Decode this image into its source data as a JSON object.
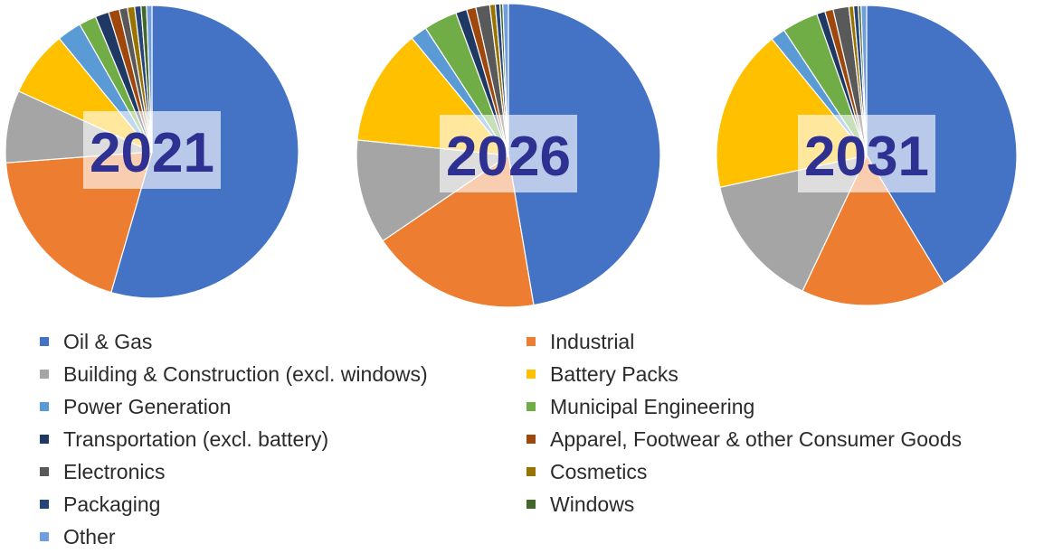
{
  "chart_data": [
    {
      "type": "pie",
      "label": "2021",
      "categories": [
        "Oil & Gas",
        "Industrial",
        "Building & Construction (excl. windows)",
        "Battery Packs",
        "Power Generation",
        "Municipal Engineering",
        "Transportation (excl. battery)",
        "Apparel, Footwear & other Consumer Goods",
        "Electronics",
        "Cosmetics",
        "Packaging",
        "Windows",
        "Other"
      ],
      "values": [
        54.5,
        19.3,
        8.0,
        7.3,
        2.7,
        1.9,
        1.5,
        1.2,
        0.9,
        0.8,
        0.7,
        0.6,
        0.6
      ]
    },
    {
      "type": "pie",
      "label": "2026",
      "categories": [
        "Oil & Gas",
        "Industrial",
        "Building & Construction (excl. windows)",
        "Battery Packs",
        "Power Generation",
        "Municipal Engineering",
        "Transportation (excl. battery)",
        "Apparel, Footwear & other Consumer Goods",
        "Electronics",
        "Cosmetics",
        "Packaging",
        "Windows",
        "Other"
      ],
      "values": [
        48.0,
        18.4,
        11.3,
        12.6,
        1.8,
        3.6,
        1.2,
        1.0,
        1.5,
        0.6,
        0.5,
        0.3,
        0.6
      ]
    },
    {
      "type": "pie",
      "label": "2031",
      "categories": [
        "Oil & Gas",
        "Industrial",
        "Building & Construction (excl. windows)",
        "Battery Packs",
        "Power Generation",
        "Municipal Engineering",
        "Transportation (excl. battery)",
        "Apparel, Footwear & other Consumer Goods",
        "Electronics",
        "Cosmetics",
        "Packaging",
        "Windows",
        "Other"
      ],
      "values": [
        41.5,
        15.7,
        14.6,
        17.6,
        1.6,
        3.9,
        0.9,
        0.9,
        1.7,
        0.5,
        0.5,
        0.3,
        0.6
      ]
    }
  ],
  "legend": {
    "column1": [
      {
        "label": "Oil & Gas",
        "color": "#4472c4"
      },
      {
        "label": "Building & Construction (excl. windows)",
        "color": "#a5a5a5"
      },
      {
        "label": "Power Generation",
        "color": "#5b9bd5"
      },
      {
        "label": "Transportation (excl. battery)",
        "color": "#203864"
      },
      {
        "label": "Electronics",
        "color": "#595959"
      },
      {
        "label": "Packaging",
        "color": "#264478"
      },
      {
        "label": "Other",
        "color": "#6f9ee0"
      }
    ],
    "column2": [
      {
        "label": "Industrial",
        "color": "#ed7d31"
      },
      {
        "label": "Battery Packs",
        "color": "#ffc000"
      },
      {
        "label": "Municipal Engineering",
        "color": "#70ad47"
      },
      {
        "label": "Apparel, Footwear & other Consumer Goods",
        "color": "#9e480e"
      },
      {
        "label": "Cosmetics",
        "color": "#997300"
      },
      {
        "label": "Windows",
        "color": "#43682b"
      }
    ]
  },
  "colors": {
    "Oil & Gas": "#4472c4",
    "Industrial": "#ed7d31",
    "Building & Construction (excl. windows)": "#a5a5a5",
    "Battery Packs": "#ffc000",
    "Power Generation": "#5b9bd5",
    "Municipal Engineering": "#70ad47",
    "Transportation (excl. battery)": "#203864",
    "Apparel, Footwear & other Consumer Goods": "#9e480e",
    "Electronics": "#595959",
    "Cosmetics": "#997300",
    "Packaging": "#264478",
    "Windows": "#43682b",
    "Other": "#6f9ee0",
    "year_label": "#2e3192"
  }
}
